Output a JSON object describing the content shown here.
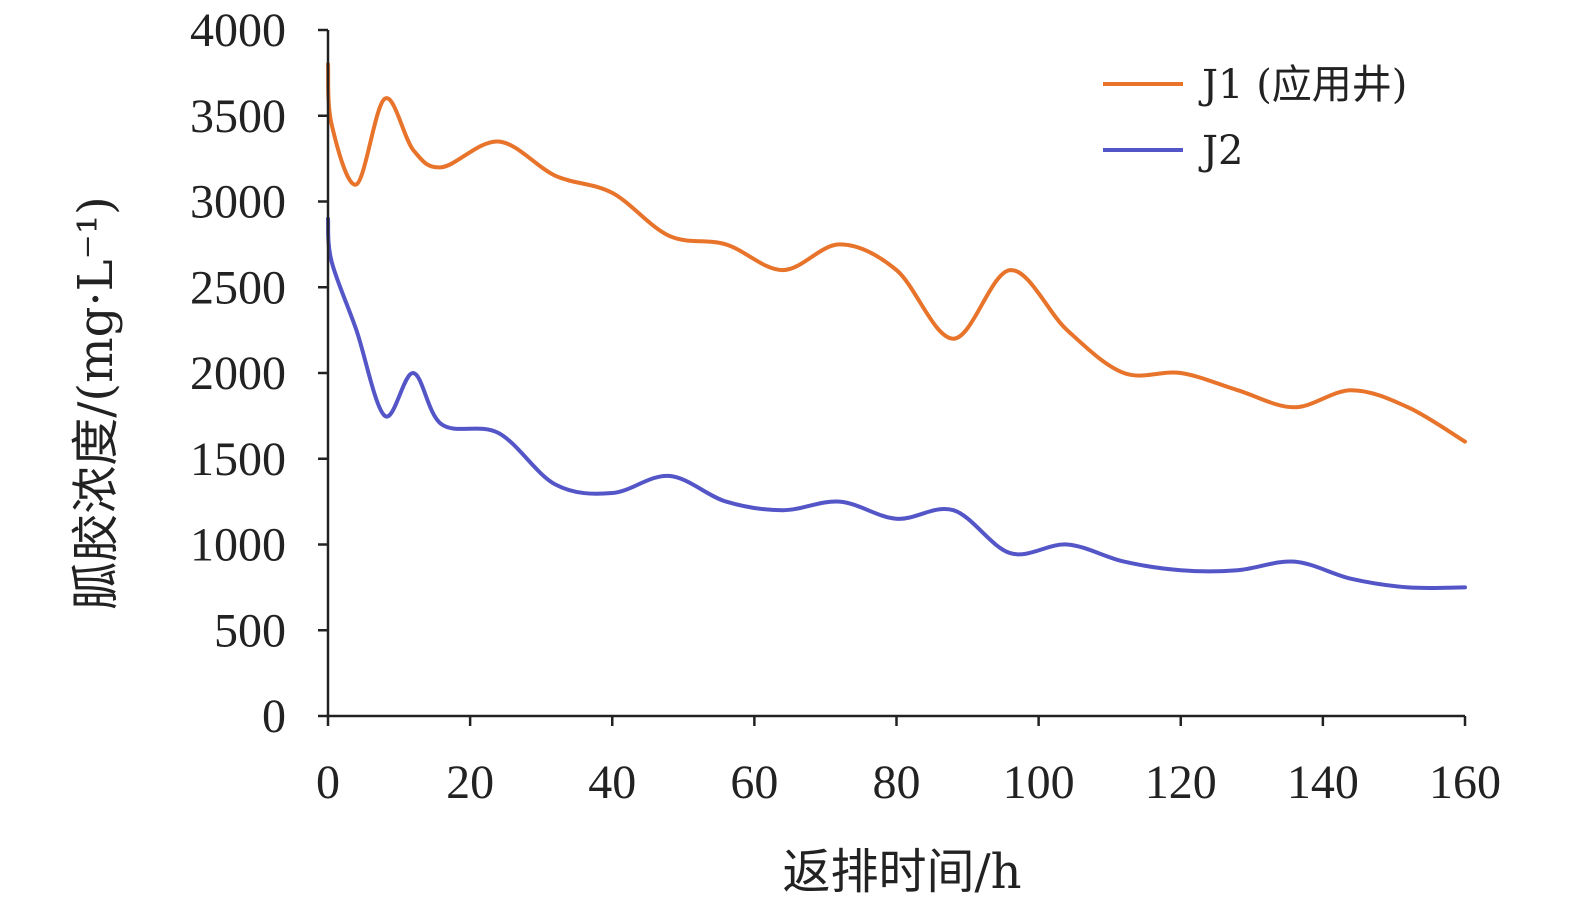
{
  "chart_data": {
    "type": "line",
    "xlabel": "返排时间/h",
    "ylabel": "胍胶浓度/(mg·L⁻¹)",
    "xlim": [
      0,
      160
    ],
    "ylim": [
      0,
      4000
    ],
    "xticks": [
      "0",
      "20",
      "40",
      "60",
      "80",
      "100",
      "120",
      "140",
      "160"
    ],
    "yticks": [
      "0",
      "500",
      "1000",
      "1500",
      "2000",
      "2500",
      "3000",
      "3500",
      "4000"
    ],
    "grid": false,
    "legend_position": "top-right",
    "series": [
      {
        "name": "J1 (应用井)",
        "color": "#E8732B",
        "points": [
          [
            0,
            3800
          ],
          [
            0.5,
            3450
          ],
          [
            4,
            3100
          ],
          [
            8,
            3600
          ],
          [
            12,
            3300
          ],
          [
            16,
            3200
          ],
          [
            24,
            3350
          ],
          [
            32,
            3150
          ],
          [
            40,
            3050
          ],
          [
            48,
            2800
          ],
          [
            56,
            2750
          ],
          [
            64,
            2600
          ],
          [
            72,
            2750
          ],
          [
            80,
            2600
          ],
          [
            88,
            2200
          ],
          [
            96,
            2600
          ],
          [
            104,
            2250
          ],
          [
            112,
            2000
          ],
          [
            120,
            2000
          ],
          [
            128,
            1900
          ],
          [
            136,
            1800
          ],
          [
            144,
            1900
          ],
          [
            152,
            1800
          ],
          [
            160,
            1600
          ]
        ]
      },
      {
        "name": "J2",
        "color": "#5456C8",
        "points": [
          [
            0,
            2900
          ],
          [
            0.5,
            2650
          ],
          [
            4,
            2250
          ],
          [
            8,
            1750
          ],
          [
            12,
            2000
          ],
          [
            16,
            1700
          ],
          [
            24,
            1650
          ],
          [
            32,
            1350
          ],
          [
            40,
            1300
          ],
          [
            48,
            1400
          ],
          [
            56,
            1250
          ],
          [
            64,
            1200
          ],
          [
            72,
            1250
          ],
          [
            80,
            1150
          ],
          [
            88,
            1200
          ],
          [
            96,
            950
          ],
          [
            104,
            1000
          ],
          [
            112,
            900
          ],
          [
            120,
            850
          ],
          [
            128,
            850
          ],
          [
            136,
            900
          ],
          [
            144,
            800
          ],
          [
            152,
            750
          ],
          [
            160,
            750
          ]
        ]
      }
    ]
  }
}
